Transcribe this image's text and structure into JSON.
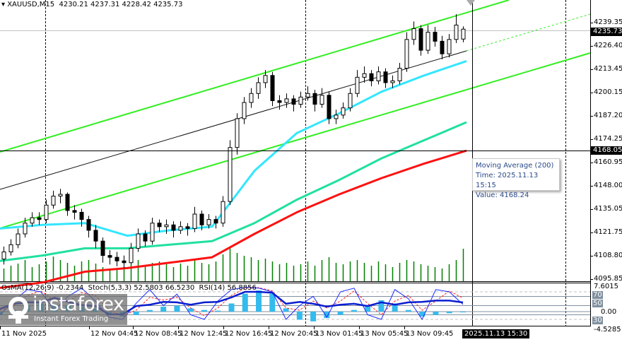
{
  "header": {
    "symbol": "XAUUSD,M15",
    "ohlc": "4230.21 4237.31 4228.42 4235.73"
  },
  "price_axis": [
    "4239.35",
    "4226.40",
    "4213.45",
    "4200.15",
    "4187.20",
    "4174.25",
    "4160.95",
    "4148.00",
    "4135.05",
    "4121.75",
    "4108.80",
    "4095.85"
  ],
  "current_price": "4235.73",
  "crosshair_price": "4168.05",
  "crosshair_time": "2025.11.13 15:30",
  "time_axis": [
    "11 Nov 2025",
    "12 Nov 04:45",
    "12 Nov 08:45",
    "12 Nov 12:45",
    "12 Nov 16:45",
    "12 Nov 20:45",
    "13 Nov 01:45",
    "13 Nov 05:45",
    "13 Nov 09:45"
  ],
  "tooltip": {
    "title": "Moving Average (200)",
    "time": "Time: 2025.11.13 15:15",
    "value": "Value: 4168.24"
  },
  "oscillator": {
    "label": "OsMA(12,26,9) -0.2344  Stoch(5,3,3) 52.5803 66.5230  RSI(14) 56.8856",
    "axis_max": "7.6015",
    "axis_zero": "0.00",
    "axis_min": "-4.5285",
    "levels": [
      "80",
      "70",
      "50",
      "30",
      "20"
    ]
  },
  "watermark": {
    "brand": "instaforex",
    "tagline": "Instant Forex Trading"
  },
  "colors": {
    "ma50": "#33e6ff",
    "ma100": "#20e0a0",
    "ma200": "#ff1010",
    "channel": "#33ee22",
    "volume": "#008000",
    "osma": "#33bbee",
    "rsi": "#0a1ed0",
    "stoch_main": "#1a2aff",
    "stoch_signal": "#ff2020"
  },
  "chart_data": {
    "type": "candlestick",
    "symbol": "XAUUSD",
    "timeframe": "M15",
    "ylim": [
      4095.85,
      4239.35
    ],
    "candles": [
      [
        4108,
        4115,
        4105,
        4112
      ],
      [
        4112,
        4119,
        4110,
        4116
      ],
      [
        4116,
        4125,
        4114,
        4122
      ],
      [
        4122,
        4131,
        4120,
        4128
      ],
      [
        4128,
        4134,
        4126,
        4131
      ],
      [
        4131,
        4134,
        4127,
        4130
      ],
      [
        4130,
        4141,
        4128,
        4138
      ],
      [
        4138,
        4146,
        4136,
        4143
      ],
      [
        4143,
        4147,
        4139,
        4144
      ],
      [
        4144,
        4145,
        4132,
        4135
      ],
      [
        4135,
        4138,
        4130,
        4134
      ],
      [
        4134,
        4136,
        4126,
        4130
      ],
      [
        4130,
        4132,
        4120,
        4124
      ],
      [
        4124,
        4127,
        4114,
        4118
      ],
      [
        4118,
        4120,
        4106,
        4110
      ],
      [
        4110,
        4113,
        4105,
        4109
      ],
      [
        4109,
        4112,
        4104,
        4107
      ],
      [
        4107,
        4110,
        4103,
        4106
      ],
      [
        4106,
        4117,
        4105,
        4114
      ],
      [
        4114,
        4125,
        4112,
        4122
      ],
      [
        4122,
        4124,
        4115,
        4118
      ],
      [
        4118,
        4131,
        4116,
        4128
      ],
      [
        4128,
        4130,
        4123,
        4126
      ],
      [
        4126,
        4130,
        4122,
        4127
      ],
      [
        4127,
        4129,
        4120,
        4124
      ],
      [
        4124,
        4129,
        4122,
        4126
      ],
      [
        4126,
        4128,
        4121,
        4125
      ],
      [
        4125,
        4137,
        4123,
        4133
      ],
      [
        4133,
        4135,
        4124,
        4127
      ],
      [
        4127,
        4133,
        4125,
        4130
      ],
      [
        4130,
        4132,
        4125,
        4128
      ],
      [
        4128,
        4143,
        4126,
        4140
      ],
      [
        4140,
        4174,
        4138,
        4170
      ],
      [
        4170,
        4189,
        4166,
        4186
      ],
      [
        4186,
        4198,
        4183,
        4195
      ],
      [
        4195,
        4203,
        4192,
        4200
      ],
      [
        4200,
        4209,
        4197,
        4206
      ],
      [
        4206,
        4213,
        4203,
        4210
      ],
      [
        4210,
        4212,
        4193,
        4196
      ],
      [
        4196,
        4199,
        4191,
        4195
      ],
      [
        4195,
        4200,
        4192,
        4197
      ],
      [
        4197,
        4199,
        4190,
        4194
      ],
      [
        4194,
        4201,
        4192,
        4198
      ],
      [
        4198,
        4204,
        4196,
        4200
      ],
      [
        4200,
        4202,
        4190,
        4194
      ],
      [
        4194,
        4203,
        4192,
        4199
      ],
      [
        4199,
        4201,
        4183,
        4186
      ],
      [
        4186,
        4191,
        4183,
        4188
      ],
      [
        4188,
        4195,
        4186,
        4192
      ],
      [
        4192,
        4203,
        4190,
        4200
      ],
      [
        4200,
        4213,
        4198,
        4209
      ],
      [
        4209,
        4215,
        4206,
        4211
      ],
      [
        4211,
        4213,
        4204,
        4207
      ],
      [
        4207,
        4215,
        4205,
        4212
      ],
      [
        4212,
        4214,
        4203,
        4206
      ],
      [
        4206,
        4210,
        4203,
        4207
      ],
      [
        4207,
        4217,
        4205,
        4214
      ],
      [
        4214,
        4234,
        4212,
        4230
      ],
      [
        4230,
        4240,
        4227,
        4236
      ],
      [
        4236,
        4238,
        4221,
        4224
      ],
      [
        4224,
        4238,
        4222,
        4234
      ],
      [
        4234,
        4237,
        4226,
        4229
      ],
      [
        4229,
        4232,
        4219,
        4222
      ],
      [
        4222,
        4233,
        4220,
        4230
      ],
      [
        4230,
        4244,
        4228,
        4238
      ],
      [
        4230.21,
        4237.31,
        4228.42,
        4235.73
      ]
    ],
    "volume": [
      18,
      22,
      25,
      30,
      20,
      24,
      28,
      35,
      30,
      26,
      22,
      28,
      30,
      25,
      20,
      18,
      16,
      20,
      24,
      30,
      22,
      26,
      28,
      24,
      20,
      25,
      22,
      30,
      26,
      24,
      28,
      38,
      48,
      40,
      36,
      34,
      30,
      32,
      28,
      24,
      26,
      22,
      24,
      28,
      22,
      30,
      34,
      26,
      24,
      28,
      30,
      26,
      22,
      28,
      24,
      20,
      26,
      30,
      28,
      24,
      22,
      20,
      18,
      24,
      30,
      46
    ],
    "moving_averages": [
      {
        "period": 50,
        "values": [
          4125,
          4127,
          4128,
          4121,
          4124,
          4126,
          4157,
          4178,
          4189,
          4201,
          4210,
          4218
        ]
      },
      {
        "period": 100,
        "values": [
          4107,
          4110,
          4114,
          4114,
          4116,
          4118,
          4128,
          4141,
          4152,
          4164,
          4174,
          4184
        ]
      },
      {
        "period": 200,
        "values": [
          4092,
          4095,
          4101,
          4103,
          4106,
          4109,
          4122,
          4134,
          4144,
          4153,
          4161,
          4168.24
        ]
      }
    ],
    "osma": [
      -1,
      0.5,
      2,
      2.5,
      2.2,
      2,
      1.5,
      1,
      -1,
      -1.5,
      -1,
      0.5,
      1.5,
      1.8,
      1,
      0.5,
      0.3,
      2.5,
      5.5,
      6.5,
      5.5,
      1,
      -2.5,
      -3,
      -2,
      -1,
      0.5,
      2,
      3.5,
      2.5,
      0.5,
      -1.5,
      -1,
      -0.5,
      -0.2344
    ],
    "stoch_main": [
      30,
      60,
      85,
      80,
      40,
      70,
      88,
      60,
      25,
      20,
      55,
      85,
      50,
      75,
      30,
      20,
      60,
      85,
      90,
      88,
      80,
      20,
      50,
      70,
      25,
      80,
      88,
      30,
      20,
      85,
      65,
      20,
      85,
      80,
      52.58
    ],
    "stoch_signal": [
      40,
      50,
      72,
      82,
      60,
      58,
      78,
      72,
      40,
      28,
      40,
      68,
      62,
      68,
      45,
      28,
      45,
      72,
      88,
      89,
      82,
      45,
      40,
      60,
      45,
      60,
      82,
      55,
      30,
      60,
      72,
      40,
      60,
      82,
      66.52
    ],
    "rsi": [
      43,
      54,
      57,
      57,
      67,
      58,
      51,
      49,
      31,
      31,
      49,
      52,
      58,
      57,
      52,
      57,
      58,
      68,
      80,
      80,
      78,
      54,
      58,
      54,
      48,
      52,
      54,
      49,
      57,
      52,
      57,
      58,
      61,
      61,
      56.89
    ],
    "osc_ylim": [
      -4.5285,
      7.6015
    ]
  }
}
